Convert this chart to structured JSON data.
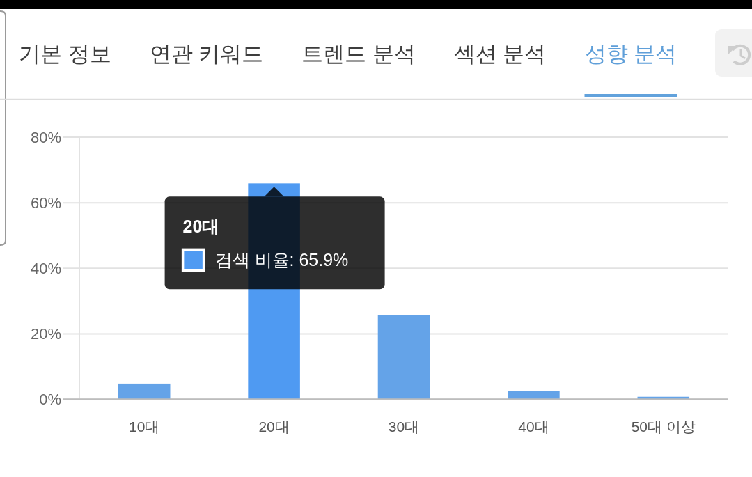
{
  "chart_data": {
    "type": "bar",
    "title": "성향 분석",
    "categories": [
      "10대",
      "20대",
      "30대",
      "40대",
      "50대 이상"
    ],
    "values": [
      4.8,
      65.9,
      25.8,
      2.6,
      0.8
    ],
    "value_labels": [
      null,
      "검색 비율: 65.9%",
      null,
      null,
      null
    ],
    "colors": [
      "#64a3e8",
      "#4f9af2",
      "#64a3e8",
      "#64a3e8",
      "#64a3e8"
    ],
    "ylim": [
      0,
      80
    ],
    "yticks": [
      {
        "value": 0,
        "label": "0%"
      },
      {
        "value": 20,
        "label": "20%"
      },
      {
        "value": 40,
        "label": "40%"
      },
      {
        "value": 60,
        "label": "60%"
      },
      {
        "value": 80,
        "label": "80%"
      }
    ],
    "grid": "y",
    "annotations": [
      "기본 정보",
      "연관 키워드",
      "트렌드 분석",
      "섹션 분석"
    ]
  }
}
